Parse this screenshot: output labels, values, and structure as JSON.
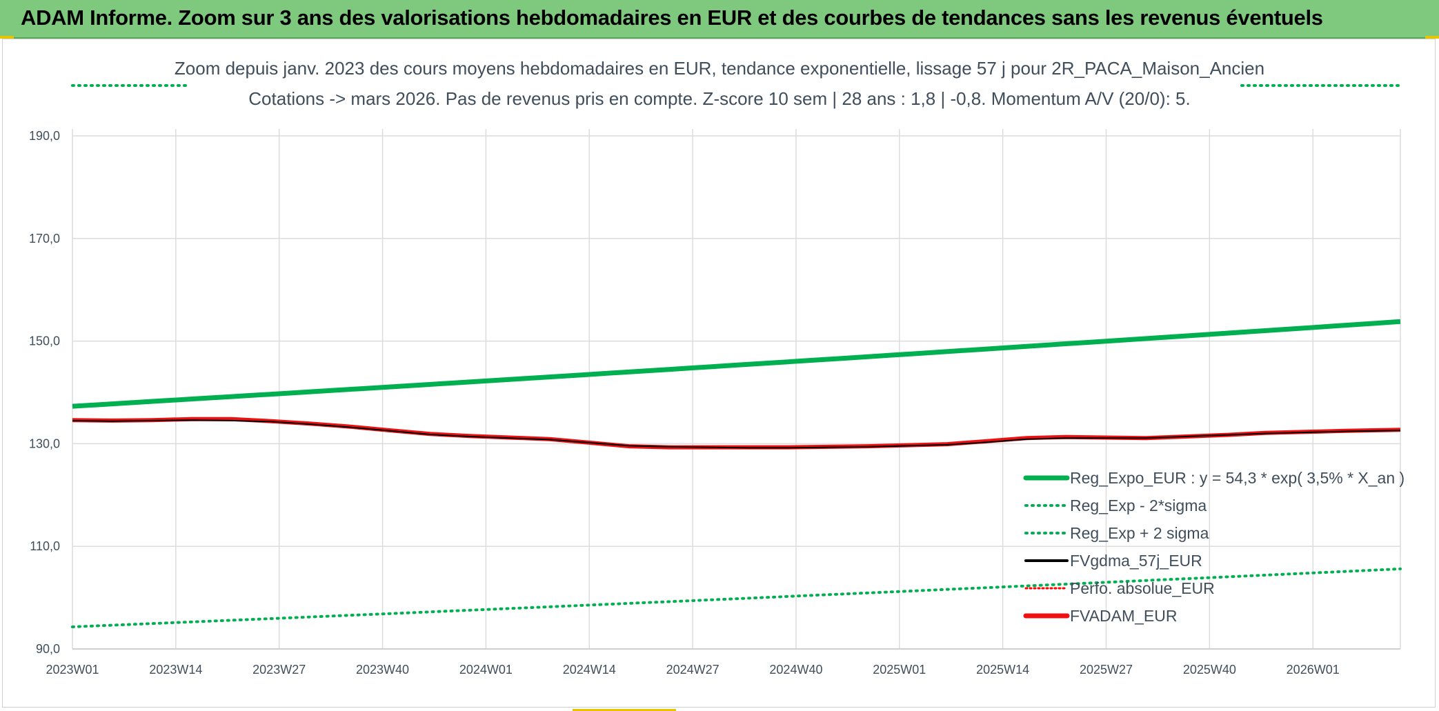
{
  "banner": {
    "title": "ADAM Informe. Zoom sur 3 ans des valorisations hebdomadaires en EUR et des courbes de tendances sans les revenus éventuels"
  },
  "chart_data": {
    "type": "line",
    "title_line1": "Zoom depuis janv. 2023 des cours moyens hebdomadaires en EUR, tendance exponentielle, lissage 57 j pour 2R_PACA_Maison_Ancien",
    "title_line2": "Cotations -> mars 2026. Pas de revenus pris en compte. Z-score 10 sem | 28 ans : 1,8 | -0,8. Momentum A/V (20/0): 5.",
    "x_tick_labels": [
      "2023W01",
      "2023W14",
      "2023W27",
      "2023W40",
      "2024W01",
      "2024W14",
      "2024W27",
      "2024W40",
      "2025W01",
      "2025W14",
      "2025W27",
      "2025W40",
      "2026W01"
    ],
    "x_range_weeks": [
      0,
      167
    ],
    "ylim": [
      90,
      190
    ],
    "y_tick_labels": [
      "90,0",
      "110,0",
      "130,0",
      "150,0",
      "170,0",
      "190,0"
    ],
    "y_tick_values": [
      90,
      110,
      130,
      150,
      170,
      190
    ],
    "grid": true,
    "legend_position": "lower-right",
    "series": [
      {
        "name": "Reg_Expo_EUR : y = 54,3 * exp( 3,5% *  X_an )",
        "color": "#00b050",
        "style": "solid-thick",
        "x": [
          0,
          167
        ],
        "y": [
          137.3,
          153.8
        ],
        "growth": "exponential"
      },
      {
        "name": "Reg_Exp - 2*sigma",
        "color": "#00b050",
        "style": "dotted",
        "x": [
          0,
          167
        ],
        "y": [
          94.3,
          105.6
        ],
        "growth": "exponential"
      },
      {
        "name": "Reg_Exp + 2 sigma",
        "color": "#00b050",
        "style": "dotted",
        "x": [
          0,
          14
        ],
        "y": [
          199.5,
          199.5
        ],
        "x2": [
          140,
          167
        ],
        "y2": [
          199.5,
          199.5
        ],
        "note_clip": "off-scale above 190"
      },
      {
        "name": "FVgdma_57j_EUR",
        "color": "#000000",
        "style": "solid",
        "x": [
          0,
          5,
          10,
          15,
          20,
          25,
          30,
          35,
          40,
          45,
          50,
          55,
          60,
          65,
          70,
          75,
          80,
          85,
          90,
          95,
          100,
          105,
          110,
          115,
          120,
          125,
          130,
          135,
          140,
          145,
          150,
          155,
          160,
          167
        ],
        "y": [
          134.5,
          134.4,
          134.5,
          134.6,
          134.5,
          134.3,
          133.8,
          133.2,
          132.5,
          131.8,
          131.4,
          131.1,
          130.8,
          130.2,
          129.6,
          129.4,
          129.3,
          129.2,
          129.2,
          129.3,
          129.4,
          129.6,
          129.8,
          130.3,
          130.9,
          131.1,
          131.1,
          131.1,
          131.4,
          131.7,
          132.0,
          132.2,
          132.4,
          132.6
        ]
      },
      {
        "name": "Perfo. absolue_EUR",
        "color": "#ff0000",
        "style": "dotted",
        "x": [],
        "y": []
      },
      {
        "name": "FVADAM_EUR",
        "color": "#ee1111",
        "style": "solid-thick",
        "x": [
          0,
          5,
          10,
          15,
          20,
          25,
          30,
          35,
          40,
          45,
          50,
          55,
          60,
          65,
          70,
          75,
          80,
          85,
          90,
          95,
          100,
          105,
          110,
          115,
          120,
          125,
          130,
          135,
          140,
          145,
          150,
          155,
          160,
          167
        ],
        "y": [
          134.6,
          134.5,
          134.6,
          134.8,
          134.8,
          134.4,
          133.9,
          133.3,
          132.6,
          131.9,
          131.5,
          131.2,
          130.9,
          130.2,
          129.5,
          129.3,
          129.3,
          129.3,
          129.3,
          129.4,
          129.5,
          129.7,
          129.9,
          130.5,
          131.1,
          131.3,
          131.2,
          131.1,
          131.4,
          131.7,
          132.1,
          132.3,
          132.5,
          132.7
        ]
      }
    ]
  }
}
